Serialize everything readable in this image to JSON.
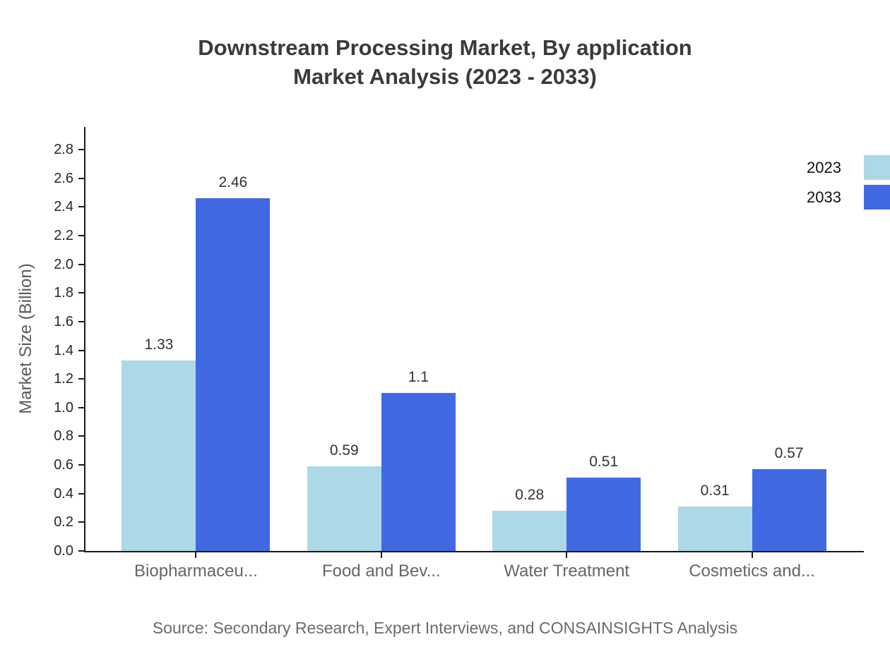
{
  "title": {
    "line1": "Downstream Processing Market, By application",
    "line2": "Market Analysis (2023 - 2033)"
  },
  "source": "Source: Secondary Research, Expert Interviews, and CONSAINSIGHTS Analysis",
  "chart_data": {
    "type": "bar",
    "title": "Downstream Processing Market, By application Market Analysis (2023 - 2033)",
    "categories": [
      "Biopharmaceu...",
      "Food and Bev...",
      "Water Treatment",
      "Cosmetics and..."
    ],
    "series": [
      {
        "name": "2023",
        "color": "#ADD8E6",
        "values": [
          1.33,
          0.59,
          0.28,
          0.31
        ]
      },
      {
        "name": "2033",
        "color": "#4169E1",
        "values": [
          2.46,
          1.1,
          0.51,
          0.57
        ]
      }
    ],
    "xlabel": "",
    "ylabel": "Market Size (Billion)",
    "ylim": [
      0.0,
      2.9
    ],
    "yticks": [
      0.0,
      0.2,
      0.4,
      0.6,
      0.8,
      1.0,
      1.2,
      1.4,
      1.6,
      1.8,
      2.0,
      2.2,
      2.4,
      2.6,
      2.8
    ],
    "grid": false,
    "legend_position": "top-right",
    "bar_value_labels": true
  },
  "colors": {
    "title_text": "#3a3a3a",
    "axis_line": "#1a1a1a",
    "tick_label": "#262626",
    "value_label": "#333333",
    "category_label": "#666666",
    "axis_title": "#595959",
    "source_text": "#6b6b6b",
    "series_2023": "#ADD8E6",
    "series_2033": "#4169E1",
    "background": "#ffffff"
  }
}
